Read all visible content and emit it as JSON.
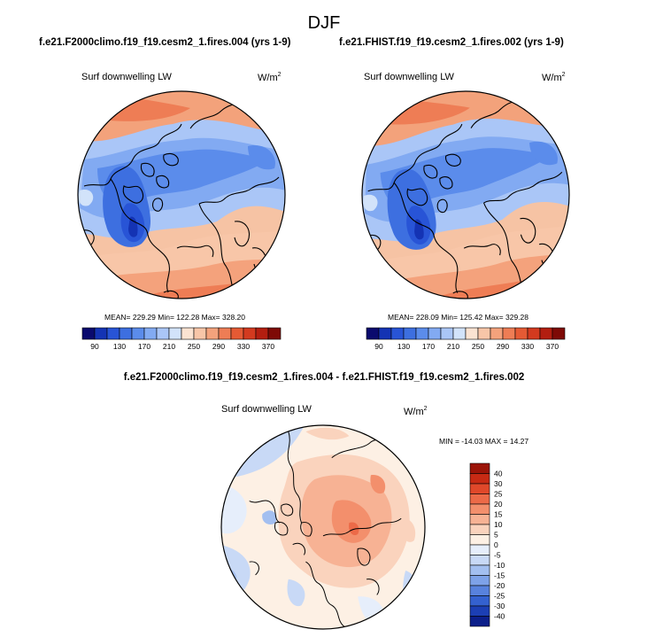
{
  "figure": {
    "season": "DJF",
    "panels": [
      {
        "case_title": "f.e21.F2000climo.f19_f19.cesm2_1.fires.004 (yrs 1-9)",
        "variable": "Surf downwelling LW",
        "units_base": "W/m",
        "units_sup": "2",
        "stats": "MEAN= 229.29  Min= 122.28  Max= 328.20"
      },
      {
        "case_title": "f.e21.FHIST.f19_f19.cesm2_1.fires.002 (yrs 1-9)",
        "variable": "Surf downwelling LW",
        "units_base": "W/m",
        "units_sup": "2",
        "stats": "MEAN= 228.09  Min= 125.42  Max= 329.28"
      }
    ],
    "difference": {
      "title": "f.e21.F2000climo.f19_f19.cesm2_1.fires.004 - f.e21.FHIST.f19_f19.cesm2_1.fires.002",
      "variable": "Surf downwelling LW",
      "units_base": "W/m",
      "units_sup": "2",
      "stats": "MIN = -14.03 MAX =  14.27"
    }
  },
  "chart_data": [
    {
      "type": "heatmap",
      "projection": "north polar stereographic",
      "title": "f.e21.F2000climo.f19_f19.cesm2_1.fires.004 (yrs 1-9)",
      "variable": "Surf downwelling LW",
      "units": "W/m2",
      "mean": 229.29,
      "min": 122.28,
      "max": 328.2,
      "colorbar": {
        "levels": [
          90,
          110,
          130,
          150,
          170,
          190,
          210,
          230,
          250,
          270,
          290,
          310,
          330,
          350,
          370
        ],
        "labels": [
          "90",
          "130",
          "170",
          "210",
          "250",
          "290",
          "330",
          "370"
        ],
        "colors": [
          "#0a0a6e",
          "#1433b4",
          "#2854d6",
          "#3d6fe0",
          "#5b8ceb",
          "#82aaf2",
          "#aac6f7",
          "#d2e3fa",
          "#fbe3d2",
          "#f8c6a8",
          "#f4a27c",
          "#ee7d55",
          "#e55a34",
          "#d33a1f",
          "#b31e10",
          "#7e0a06"
        ]
      }
    },
    {
      "type": "heatmap",
      "projection": "north polar stereographic",
      "title": "f.e21.FHIST.f19_f19.cesm2_1.fires.002 (yrs 1-9)",
      "variable": "Surf downwelling LW",
      "units": "W/m2",
      "mean": 228.09,
      "min": 125.42,
      "max": 329.28,
      "colorbar": {
        "levels": [
          90,
          110,
          130,
          150,
          170,
          190,
          210,
          230,
          250,
          270,
          290,
          310,
          330,
          350,
          370
        ],
        "labels": [
          "90",
          "130",
          "170",
          "210",
          "250",
          "290",
          "330",
          "370"
        ],
        "colors": [
          "#0a0a6e",
          "#1433b4",
          "#2854d6",
          "#3d6fe0",
          "#5b8ceb",
          "#82aaf2",
          "#aac6f7",
          "#d2e3fa",
          "#fbe3d2",
          "#f8c6a8",
          "#f4a27c",
          "#ee7d55",
          "#e55a34",
          "#d33a1f",
          "#b31e10",
          "#7e0a06"
        ]
      }
    },
    {
      "type": "heatmap",
      "projection": "north polar stereographic",
      "title": "f.e21.F2000climo.f19_f19.cesm2_1.fires.004 - f.e21.FHIST.f19_f19.cesm2_1.fires.002",
      "variable": "Surf downwelling LW",
      "units": "W/m2",
      "min": -14.03,
      "max": 14.27,
      "colorbar": {
        "orientation": "vertical",
        "labels": [
          "40",
          "30",
          "25",
          "20",
          "15",
          "10",
          "5",
          "0",
          "-5",
          "-10",
          "-15",
          "-20",
          "-25",
          "-30",
          "-40"
        ],
        "colors": [
          "#9b1408",
          "#c72a14",
          "#e0482a",
          "#ec6a48",
          "#f38f6c",
          "#f7b294",
          "#fad3bd",
          "#fdf0e4",
          "#e6eefb",
          "#c8d9f6",
          "#a3bff0",
          "#7ea2e8",
          "#5882dd",
          "#3461cf",
          "#1c3fb4",
          "#0c1f8a"
        ]
      }
    }
  ]
}
